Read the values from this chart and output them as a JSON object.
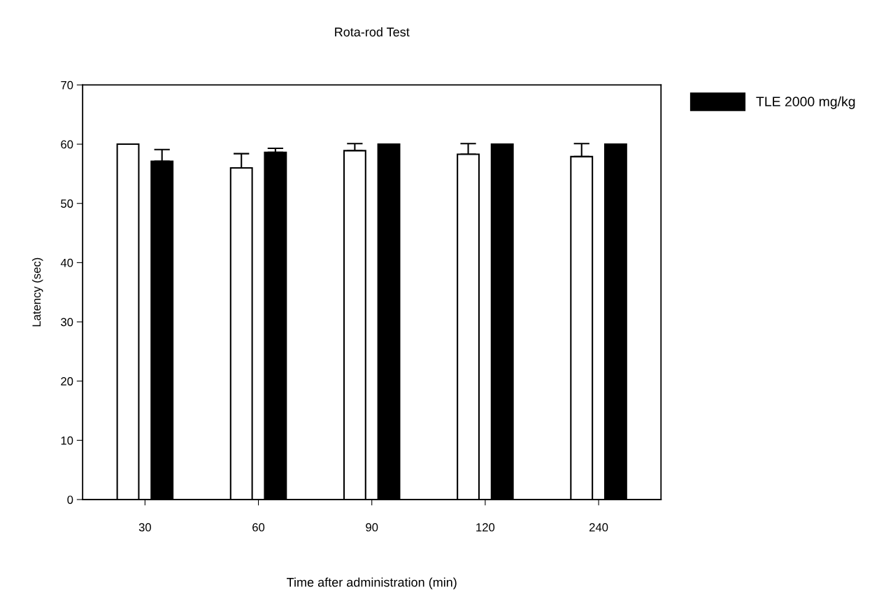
{
  "chart_data": {
    "type": "bar",
    "title": "Rota-rod Test",
    "xlabel": "Time after administration (min)",
    "ylabel": "Latency (sec)",
    "categories": [
      "30",
      "60",
      "90",
      "120",
      "240"
    ],
    "series": [
      {
        "color": "#ffffff",
        "values": [
          60,
          56.0,
          58.9,
          58.3,
          57.9
        ],
        "errors": [
          null,
          2.4,
          1.2,
          1.8,
          2.2
        ]
      },
      {
        "name": "TLE 2000 mg/kg",
        "color": "#000000",
        "values": [
          57.1,
          58.6,
          60,
          60,
          60
        ],
        "errors": [
          2.0,
          0.7,
          null,
          null,
          null
        ]
      }
    ],
    "ylim": [
      0,
      70
    ],
    "yticks": [
      0,
      10,
      20,
      30,
      40,
      50,
      60,
      70
    ],
    "grid": false,
    "legend": "top right"
  }
}
